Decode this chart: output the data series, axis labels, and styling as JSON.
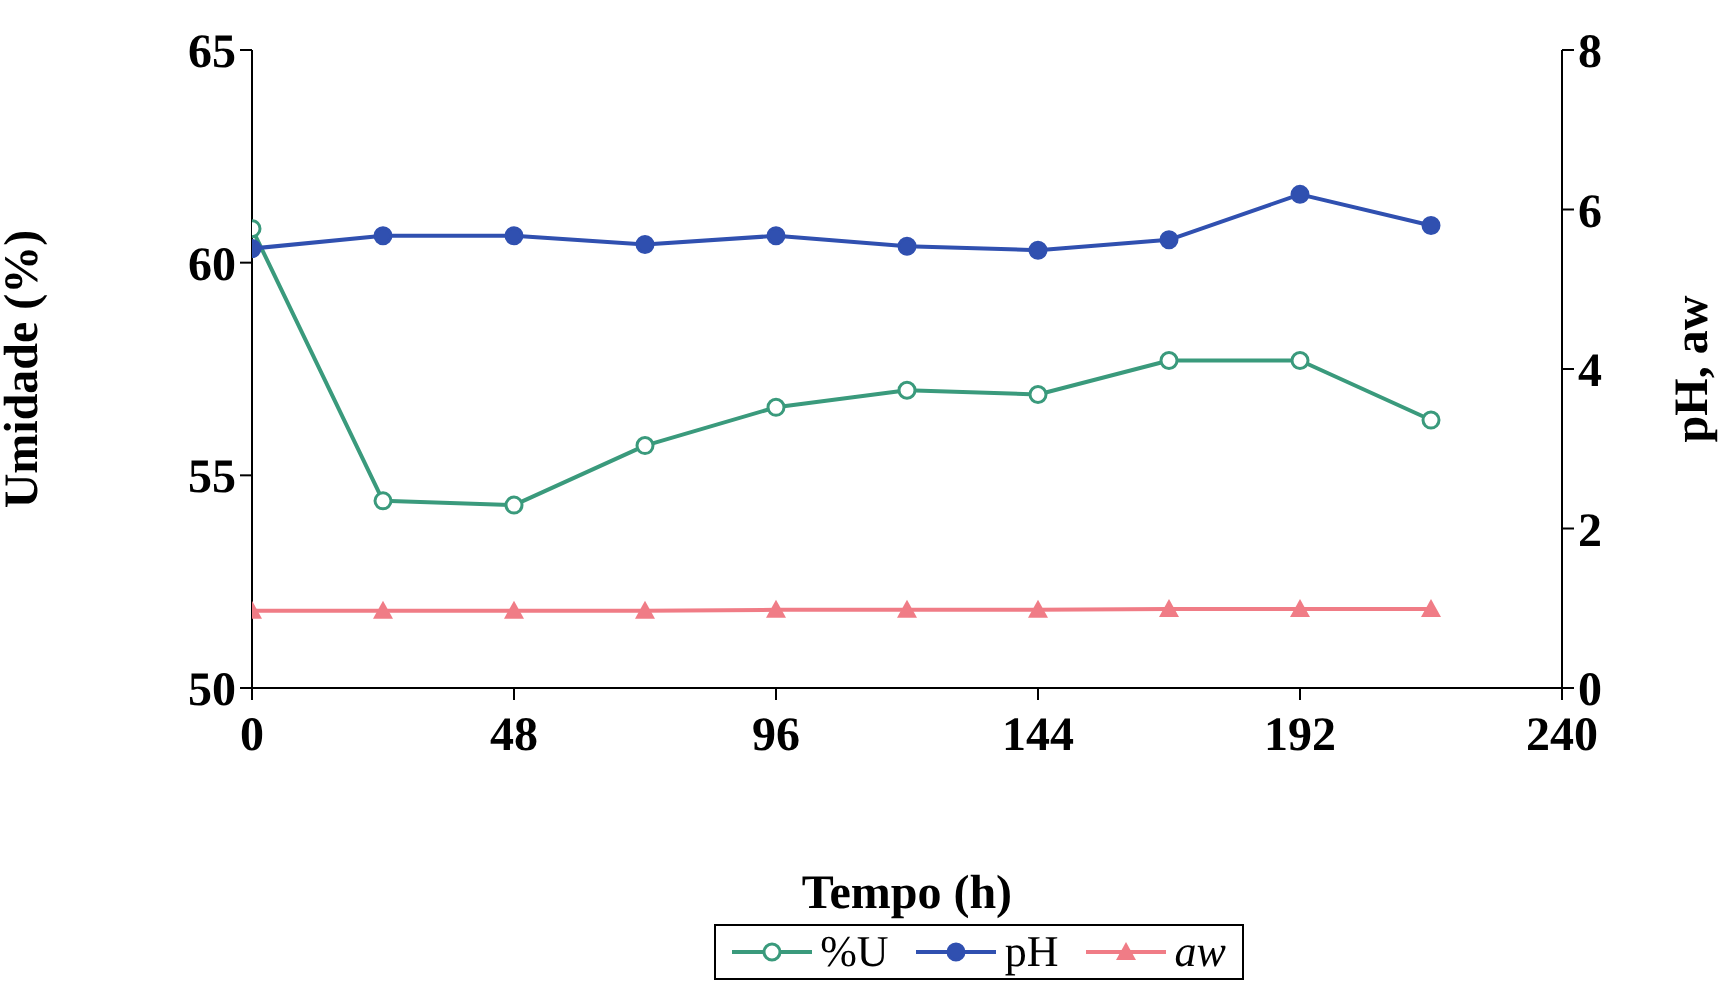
{
  "chart_data": {
    "type": "line",
    "xlabel": "Tempo (h)",
    "ylabel": "Umidade (%)",
    "y2label": "pH, aw",
    "x": [
      0,
      24,
      48,
      72,
      96,
      120,
      144,
      168,
      192,
      216
    ],
    "series": [
      {
        "name": "%U",
        "color": "#3a9a7c",
        "marker": "circle",
        "values": [
          60.8,
          54.4,
          54.3,
          55.7,
          56.6,
          57.0,
          56.9,
          57.7,
          57.7,
          56.3
        ]
      },
      {
        "name": "pH",
        "color": "#3050b0",
        "marker": "circle",
        "axis": "y2",
        "values": [
          5.51,
          5.67,
          5.67,
          5.56,
          5.67,
          5.54,
          5.49,
          5.62,
          6.19,
          5.8
        ]
      },
      {
        "name": "aw",
        "color": "#f07c86",
        "marker": "triangle",
        "axis": "y2",
        "values": [
          0.97,
          0.97,
          0.97,
          0.97,
          0.98,
          0.98,
          0.98,
          0.99,
          0.99,
          0.99
        ]
      }
    ],
    "xlim": [
      0,
      240
    ],
    "xticks": [
      0,
      48,
      96,
      144,
      192,
      240
    ],
    "ylim": [
      50,
      65
    ],
    "yticks": [
      50,
      55,
      60,
      65
    ],
    "y2lim": [
      0,
      8
    ],
    "y2ticks": [
      0,
      2,
      4,
      6,
      8
    ],
    "legend": "bottom",
    "grid": false
  }
}
